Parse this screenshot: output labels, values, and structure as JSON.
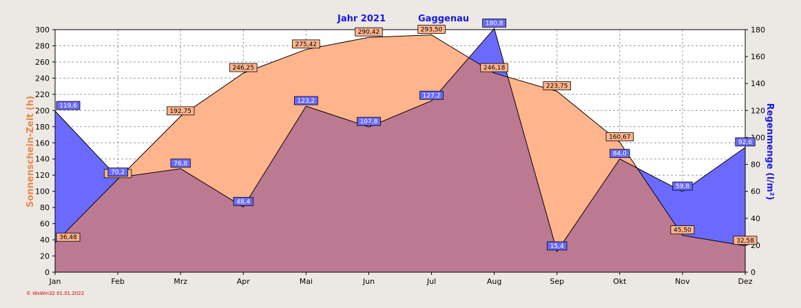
{
  "chart_data": {
    "type": "area",
    "title": "Jahr 2021",
    "location": "Gaggenau",
    "categories": [
      "Jan",
      "Feb",
      "Mrz",
      "Apr",
      "Mai",
      "Jun",
      "Jul",
      "Aug",
      "Sep",
      "Okt",
      "Nov",
      "Dez"
    ],
    "ylabel_left": "Sonnenschein-Zeit  (h)",
    "ylabel_right": "Regenmenge  (l/m²)",
    "ylim_left": [
      0,
      300
    ],
    "ylim_right": [
      0,
      180
    ],
    "yticks_left": [
      0,
      20,
      40,
      60,
      80,
      100,
      120,
      140,
      160,
      180,
      200,
      220,
      240,
      260,
      280,
      300
    ],
    "yticks_right": [
      0,
      20,
      40,
      60,
      80,
      100,
      120,
      140,
      160,
      180
    ],
    "grid": true,
    "series": [
      {
        "name": "Sonnenschein-Zeit",
        "axis": "left",
        "color": "#ffb48c",
        "values": [
          36.48,
          115.17,
          192.75,
          246.25,
          275.42,
          290.42,
          293.5,
          246.18,
          223.75,
          160.67,
          45.5,
          32.58
        ],
        "labels": [
          "36,48",
          "115,17",
          "192,75",
          "246,25",
          "275,42",
          "290,42",
          "293,50",
          "246,18",
          "223,75",
          "160,67",
          "45,50",
          "32,58"
        ]
      },
      {
        "name": "Regenmenge",
        "axis": "right",
        "color": "#6a6aff",
        "values": [
          119.6,
          70.2,
          76.8,
          48.4,
          123.2,
          107.8,
          127.2,
          180.8,
          15.4,
          84.0,
          59.8,
          92.6
        ],
        "labels": [
          "119,6",
          "70,2",
          "76,8",
          "48,4",
          "123,2",
          "107,8",
          "127,2",
          "180,8",
          "15,4",
          "84,0",
          "59,8",
          "92,6"
        ]
      }
    ]
  },
  "footer": "© WsWin32  01.01.2022",
  "colors": {
    "background": "#ece9e4",
    "plot_background": "#ffffff",
    "sun_fill": "#ffb48c",
    "rain_fill": "#6a6aff",
    "overlap_fill": "#bc7a92",
    "title": "#1a1adc",
    "left_axis_label": "#e8884a"
  }
}
